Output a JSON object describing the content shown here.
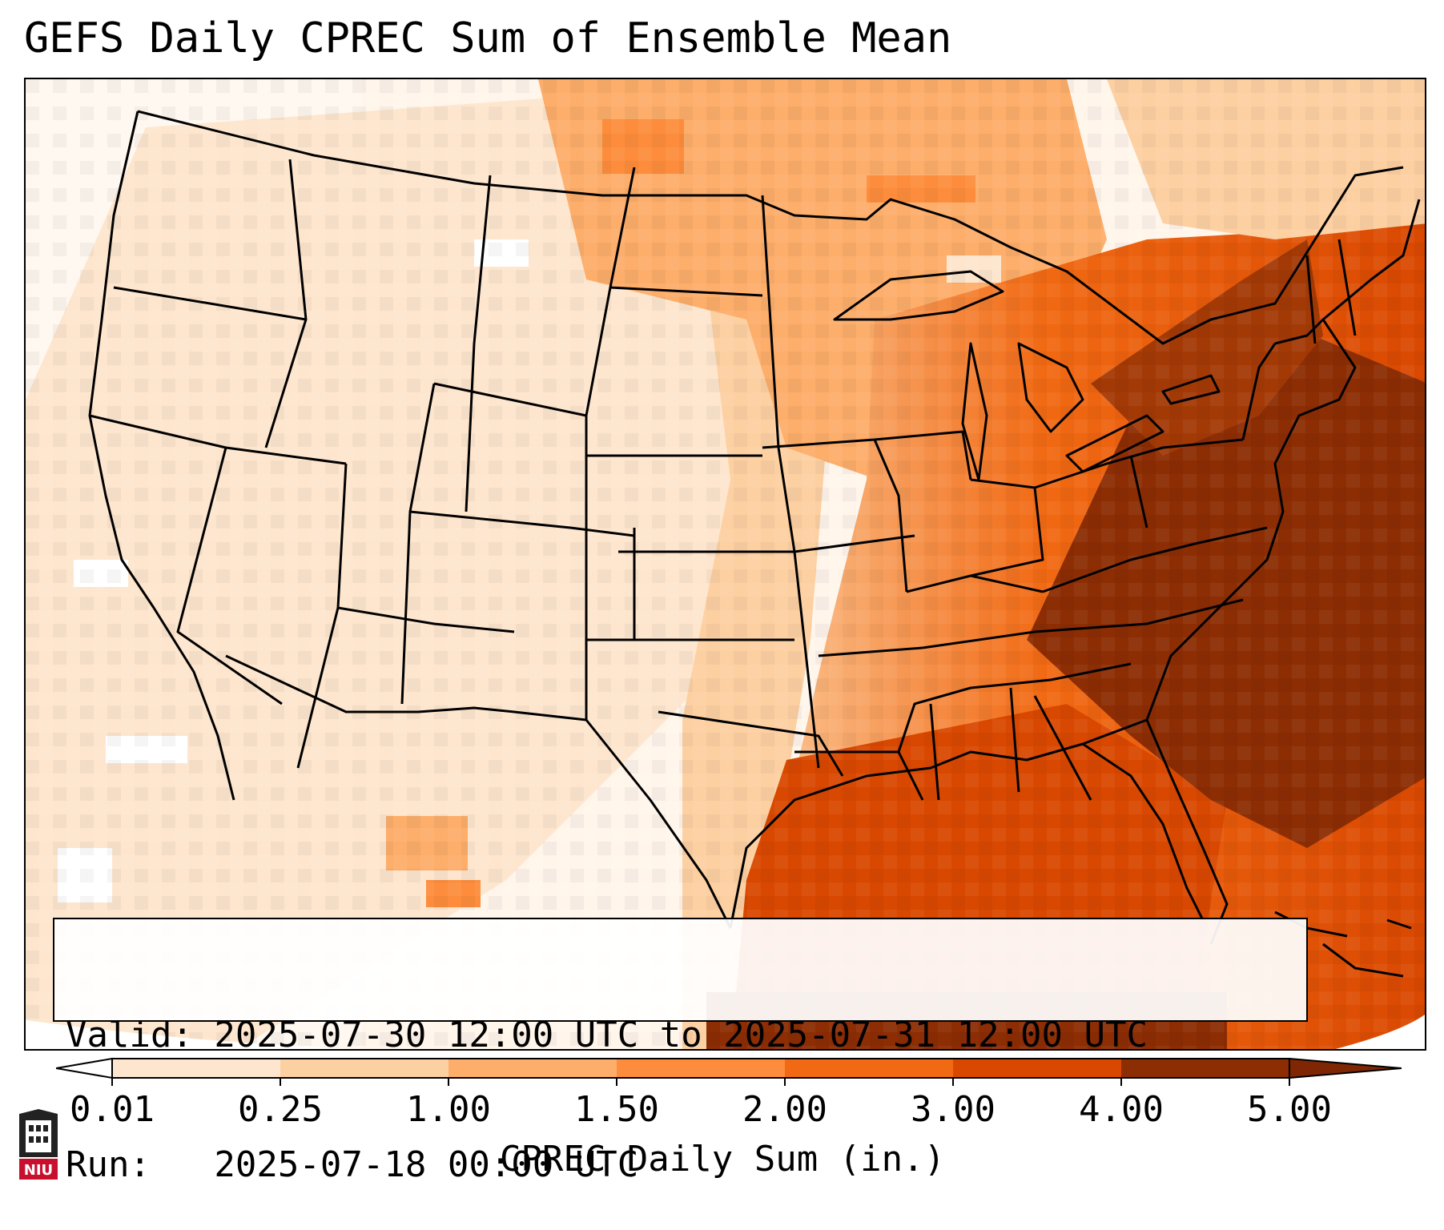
{
  "title": "GEFS Daily CPREC Sum of Ensemble Mean",
  "info": {
    "valid_line": "Valid: 2025-07-30 12:00 UTC to 2025-07-31 12:00 UTC",
    "run_line": "Run:   2025-07-18 00:00 UTC"
  },
  "colorbar": {
    "label": "CPREC Daily Sum (in.)",
    "ticks": [
      "0.01",
      "0.25",
      "1.00",
      "1.50",
      "2.00",
      "3.00",
      "4.00",
      "5.00"
    ],
    "colors": [
      "#fff5eb",
      "#fee6ce",
      "#fdd0a2",
      "#fdae6b",
      "#fd8d3c",
      "#f16913",
      "#d94801",
      "#8c2d04"
    ],
    "under_color": "#ffffff",
    "over_color": "#7f2704"
  },
  "map": {
    "region": "CONUS",
    "field": "precipitation shading",
    "heaviest_area": "Southeast US / Mid-Atlantic coast and western Atlantic",
    "lightest_area": "West and Southwest US"
  },
  "logo": {
    "text": "NIU",
    "color": "#c8102e"
  }
}
